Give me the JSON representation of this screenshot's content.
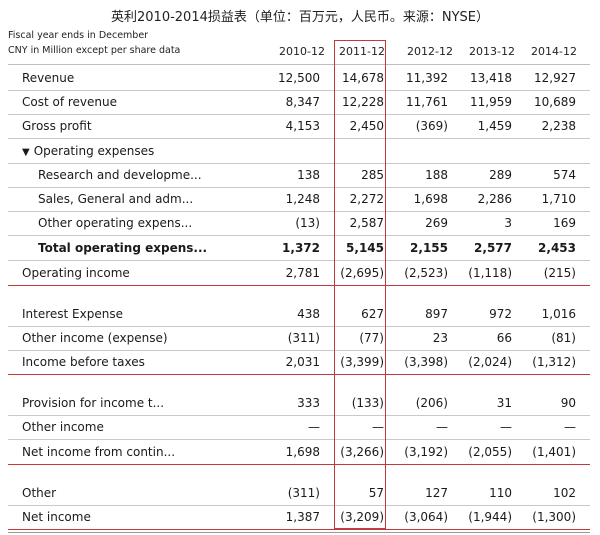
{
  "title": "英利2010-2014损益表（单位：百万元，人民币。来源：NYSE）",
  "header": {
    "note1": "Fiscal year ends in December",
    "note2": "CNY in Million except per share data",
    "years": [
      "2010-12",
      "2011-12",
      "2012-12",
      "2013-12",
      "2014-12"
    ]
  },
  "rows": [
    {
      "label": "Revenue",
      "values": [
        "12,500",
        "14,678",
        "11,392",
        "13,418",
        "12,927"
      ]
    },
    {
      "label": "Cost of revenue",
      "values": [
        "8,347",
        "12,228",
        "11,761",
        "11,959",
        "10,689"
      ]
    },
    {
      "label": "Gross profit",
      "values": [
        "4,153",
        "2,450",
        "(369)",
        "1,459",
        "2,238"
      ]
    },
    {
      "label": "Operating expenses",
      "values": [
        "",
        "",
        "",
        "",
        ""
      ]
    },
    {
      "label": "Research and developme...",
      "values": [
        "138",
        "285",
        "188",
        "289",
        "574"
      ]
    },
    {
      "label": "Sales, General and adm...",
      "values": [
        "1,248",
        "2,272",
        "1,698",
        "2,286",
        "1,710"
      ]
    },
    {
      "label": "Other operating expens...",
      "values": [
        "(13)",
        "2,587",
        "269",
        "3",
        "169"
      ]
    },
    {
      "label": "Total operating expens...",
      "values": [
        "1,372",
        "5,145",
        "2,155",
        "2,577",
        "2,453"
      ]
    },
    {
      "label": "Operating income",
      "values": [
        "2,781",
        "(2,695)",
        "(2,523)",
        "(1,118)",
        "(215)"
      ]
    },
    {
      "label": "Interest Expense",
      "values": [
        "438",
        "627",
        "897",
        "972",
        "1,016"
      ]
    },
    {
      "label": "Other income (expense)",
      "values": [
        "(311)",
        "(77)",
        "23",
        "66",
        "(81)"
      ]
    },
    {
      "label": "Income before taxes",
      "values": [
        "2,031",
        "(3,399)",
        "(3,398)",
        "(2,024)",
        "(1,312)"
      ]
    },
    {
      "label": "Provision for income t...",
      "values": [
        "333",
        "(133)",
        "(206)",
        "31",
        "90"
      ]
    },
    {
      "label": "Other income",
      "values": [
        "—",
        "—",
        "—",
        "—",
        "—"
      ]
    },
    {
      "label": "Net income from contin...",
      "values": [
        "1,698",
        "(3,266)",
        "(3,192)",
        "(2,055)",
        "(1,401)"
      ]
    },
    {
      "label": "Other",
      "values": [
        "(311)",
        "57",
        "127",
        "110",
        "102"
      ]
    },
    {
      "label": "Net income",
      "values": [
        "1,387",
        "(3,209)",
        "(3,064)",
        "(1,944)",
        "(1,300)"
      ]
    }
  ],
  "colors": {
    "highlight_box": "#c0393b",
    "rule_line": "#c9c9c9"
  }
}
